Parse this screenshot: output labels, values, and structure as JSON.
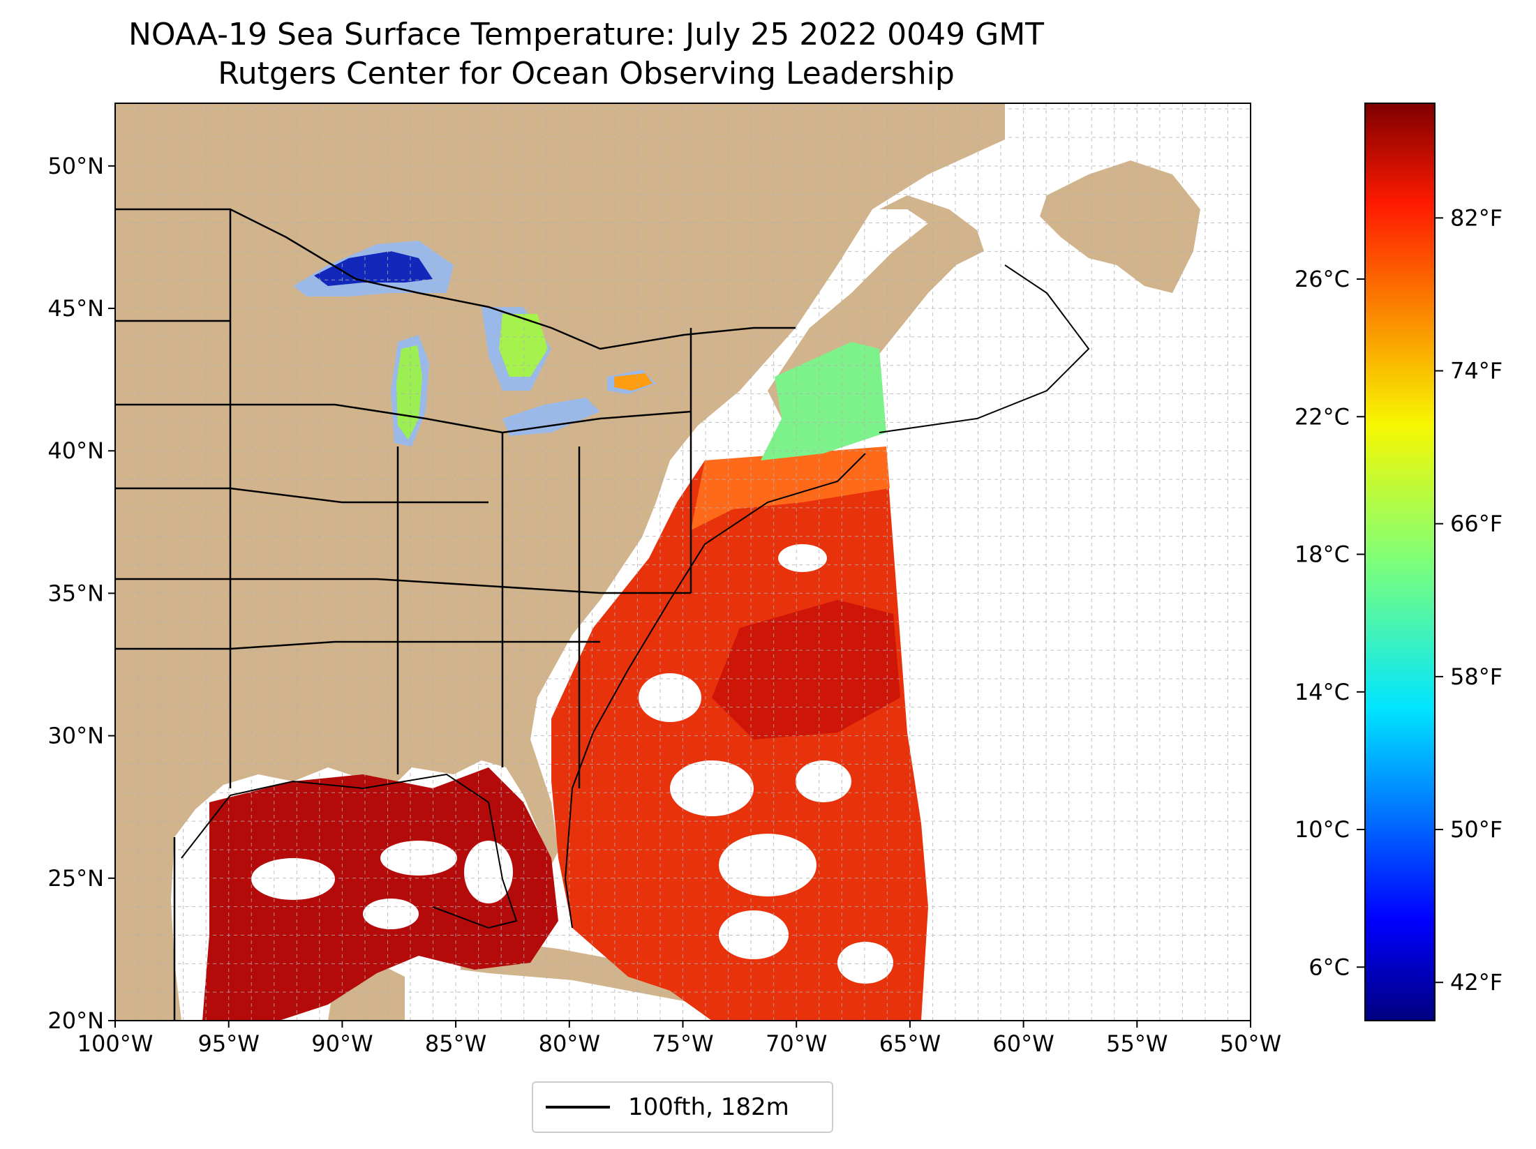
{
  "title": {
    "line1": "NOAA-19 Sea Surface Temperature: July 25 2022 0049 GMT",
    "line2": "Rutgers Center for Ocean Observing Leadership"
  },
  "map": {
    "extent": {
      "lon_min": -100,
      "lon_max": -50,
      "lat_min": 20,
      "lat_max": 52.2
    },
    "lon_ticks": [
      {
        "value": -100,
        "label": "100°W"
      },
      {
        "value": -95,
        "label": "95°W"
      },
      {
        "value": -90,
        "label": "90°W"
      },
      {
        "value": -85,
        "label": "85°W"
      },
      {
        "value": -80,
        "label": "80°W"
      },
      {
        "value": -75,
        "label": "75°W"
      },
      {
        "value": -70,
        "label": "70°W"
      },
      {
        "value": -65,
        "label": "65°W"
      },
      {
        "value": -60,
        "label": "60°W"
      },
      {
        "value": -55,
        "label": "55°W"
      },
      {
        "value": -50,
        "label": "50°W"
      }
    ],
    "lat_ticks": [
      {
        "value": 20,
        "label": "20°N"
      },
      {
        "value": 25,
        "label": "25°N"
      },
      {
        "value": 30,
        "label": "30°N"
      },
      {
        "value": 35,
        "label": "35°N"
      },
      {
        "value": 40,
        "label": "40°N"
      },
      {
        "value": 45,
        "label": "45°N"
      },
      {
        "value": 50,
        "label": "50°N"
      }
    ],
    "gridlines": true,
    "land_color": "#d2b48c",
    "lake_color": "#9bb9e8",
    "ocean_color": "#ffffff"
  },
  "colorbar": {
    "colormap": "jet",
    "range_f": [
      40,
      88
    ],
    "fahrenheit_ticks": [
      {
        "value": 42,
        "label": "42°F"
      },
      {
        "value": 50,
        "label": "50°F"
      },
      {
        "value": 58,
        "label": "58°F"
      },
      {
        "value": 66,
        "label": "66°F"
      },
      {
        "value": 74,
        "label": "74°F"
      },
      {
        "value": 82,
        "label": "82°F"
      }
    ],
    "celsius_ticks": [
      {
        "value": 6,
        "label": "6°C"
      },
      {
        "value": 10,
        "label": "10°C"
      },
      {
        "value": 14,
        "label": "14°C"
      },
      {
        "value": 18,
        "label": "18°C"
      },
      {
        "value": 22,
        "label": "22°C"
      },
      {
        "value": 26,
        "label": "26°C"
      }
    ]
  },
  "legend": {
    "line_label": "100fth, 182m"
  }
}
